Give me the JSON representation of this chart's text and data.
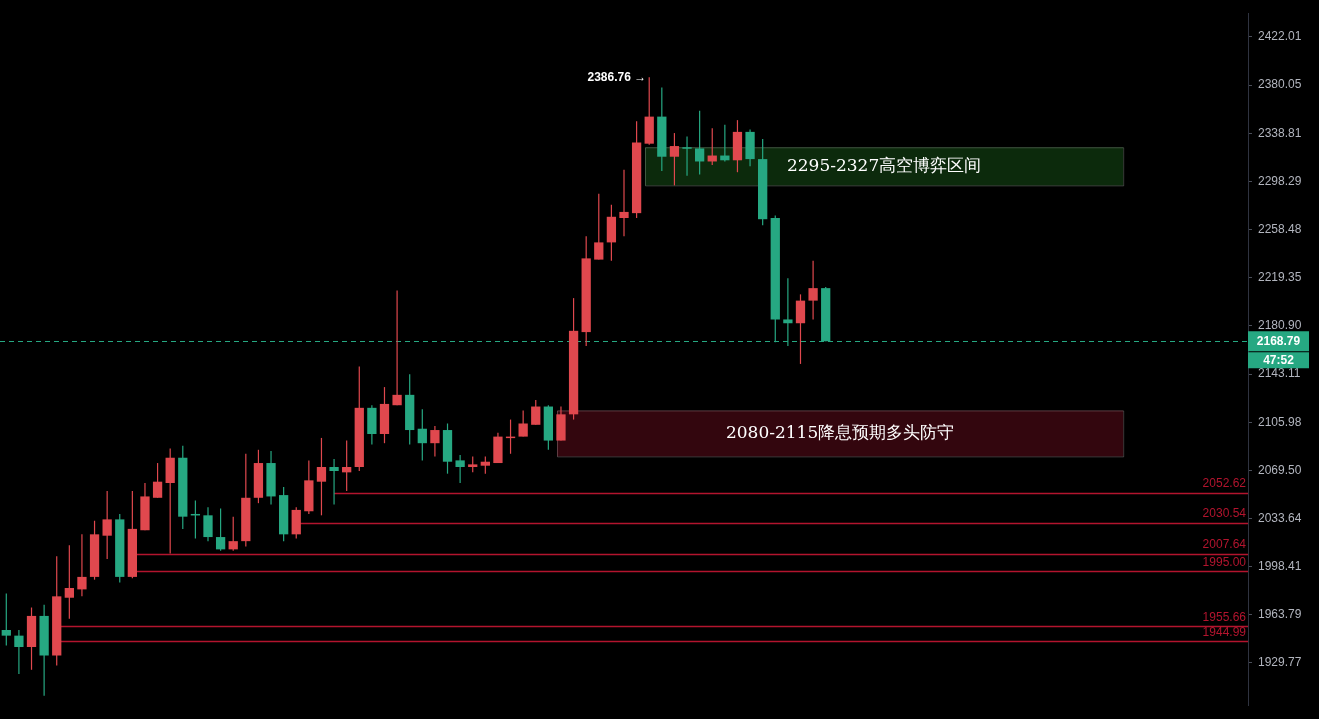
{
  "chart_data": {
    "type": "candlestick",
    "categories": [
      null,
      null,
      null,
      null,
      null,
      null,
      null,
      null,
      null,
      null,
      null,
      null,
      null,
      null,
      null,
      null,
      null,
      null,
      null,
      null,
      null,
      null,
      null,
      null,
      null,
      null,
      null,
      null,
      null,
      null,
      null,
      null,
      null,
      null,
      null,
      null,
      null,
      null,
      null,
      null,
      null,
      null,
      null,
      null,
      null,
      null,
      null,
      null,
      null,
      null,
      null,
      null,
      null,
      null,
      null,
      null,
      null,
      null,
      null,
      null,
      null,
      null,
      null,
      null,
      null,
      null,
      null,
      null,
      null,
      null,
      null,
      null,
      null,
      null,
      null,
      null,
      null,
      null,
      null,
      null,
      null,
      null,
      null,
      null,
      null,
      null,
      null,
      null,
      null,
      null,
      null,
      null,
      null,
      null,
      null,
      null,
      null,
      null,
      null
    ],
    "ohlc": [
      [
        1953,
        1979,
        1942,
        1949
      ],
      [
        1949,
        1953,
        1922,
        1941
      ],
      [
        1941,
        1969,
        1925,
        1963
      ],
      [
        1963,
        1971,
        1907,
        1935
      ],
      [
        1935,
        2006,
        1928,
        1977
      ],
      [
        1976,
        2014,
        1961,
        1983
      ],
      [
        1982,
        2022,
        1977,
        1991
      ],
      [
        1991,
        2032,
        1989,
        2022
      ],
      [
        2021,
        2054,
        2004,
        2033
      ],
      [
        2033,
        2037,
        1987,
        1991
      ],
      [
        1991,
        2054,
        1990,
        2026
      ],
      [
        2025,
        2060,
        2025,
        2050
      ],
      [
        2049,
        2075,
        2049,
        2061
      ],
      [
        2060,
        2086,
        2008,
        2079
      ],
      [
        2079,
        2088,
        2026,
        2035
      ],
      [
        2037,
        2047,
        2019,
        2036
      ],
      [
        2036,
        2042,
        2017,
        2020
      ],
      [
        2020,
        2041,
        2010,
        2011
      ],
      [
        2011,
        2035,
        2010,
        2017
      ],
      [
        2017,
        2082,
        2013,
        2049
      ],
      [
        2049,
        2085,
        2045,
        2075
      ],
      [
        2075,
        2084,
        2044,
        2050
      ],
      [
        2051,
        2057,
        2017,
        2022
      ],
      [
        2022,
        2042,
        2019,
        2040
      ],
      [
        2039,
        2077,
        2037,
        2062
      ],
      [
        2061,
        2094,
        2036,
        2072
      ],
      [
        2072,
        2078,
        2044,
        2069
      ],
      [
        2068,
        2092,
        2054,
        2072
      ],
      [
        2072,
        2149,
        2069,
        2117
      ],
      [
        2117,
        2119,
        2089,
        2097
      ],
      [
        2097,
        2133,
        2090,
        2120
      ],
      [
        2119,
        2209,
        2119,
        2127
      ],
      [
        2127,
        2143,
        2089,
        2100
      ],
      [
        2101,
        2116,
        2077,
        2090
      ],
      [
        2090,
        2103,
        2080,
        2100
      ],
      [
        2100,
        2105,
        2067,
        2076
      ],
      [
        2077,
        2081,
        2060,
        2072
      ],
      [
        2072,
        2080,
        2068,
        2074
      ],
      [
        2073,
        2080,
        2067,
        2076
      ],
      [
        2075,
        2098,
        2075,
        2095
      ],
      [
        2094,
        2108,
        2082,
        2095
      ],
      [
        2095,
        2115,
        2095,
        2105
      ],
      [
        2104,
        2123,
        2104,
        2118
      ],
      [
        2118,
        2119,
        2085,
        2092
      ],
      [
        2092,
        2118,
        2092,
        2112
      ],
      [
        2112,
        2203,
        2108,
        2177
      ],
      [
        2176,
        2253,
        2165,
        2235
      ],
      [
        2234,
        2288,
        2234,
        2248
      ],
      [
        2248,
        2279,
        2233,
        2269
      ],
      [
        2268,
        2308,
        2253,
        2273
      ],
      [
        2272,
        2349,
        2268,
        2331
      ],
      [
        2330,
        2386.76,
        2329,
        2353
      ],
      [
        2353,
        2378,
        2307,
        2319
      ],
      [
        2319,
        2339,
        2295,
        2328
      ],
      [
        2327,
        2336,
        2303,
        2326
      ],
      [
        2326,
        2358,
        2304,
        2315
      ],
      [
        2315,
        2343,
        2312,
        2320
      ],
      [
        2320,
        2346,
        2315,
        2316
      ],
      [
        2316,
        2350,
        2306,
        2340
      ],
      [
        2340,
        2342,
        2311,
        2317
      ],
      [
        2317,
        2334,
        2262,
        2267
      ],
      [
        2268,
        2270,
        2168,
        2186
      ],
      [
        2186,
        2219,
        2165,
        2183
      ],
      [
        2183,
        2206,
        2151,
        2201
      ],
      [
        2201,
        2233,
        2186,
        2211
      ],
      [
        2211,
        2212,
        2168.79,
        2168.79
      ],
      null,
      null,
      null,
      null,
      null,
      null,
      null,
      null,
      null,
      null,
      null,
      null,
      null,
      null,
      null,
      null,
      null,
      null,
      null,
      null,
      null,
      null,
      null,
      null,
      null,
      null,
      null,
      null,
      null,
      null,
      null,
      null,
      null
    ],
    "colors": [
      "#26a882",
      "#26a882",
      "#e0484e",
      "#26a882",
      "#e0484e",
      "#e0484e",
      "#e0484e",
      "#e0484e",
      "#e0484e",
      "#26a882",
      "#e0484e",
      "#e0484e",
      "#e0484e",
      "#e0484e",
      "#26a882",
      "#26a882",
      "#26a882",
      "#26a882",
      "#e0484e",
      "#e0484e",
      "#e0484e",
      "#26a882",
      "#26a882",
      "#e0484e",
      "#e0484e",
      "#e0484e",
      "#26a882",
      "#e0484e",
      "#e0484e",
      "#26a882",
      "#e0484e",
      "#e0484e",
      "#26a882",
      "#26a882",
      "#e0484e",
      "#26a882",
      "#26a882",
      "#e0484e",
      "#e0484e",
      "#e0484e",
      "#e0484e",
      "#e0484e",
      "#e0484e",
      "#26a882",
      "#e0484e",
      "#e0484e",
      "#e0484e",
      "#e0484e",
      "#e0484e",
      "#e0484e",
      "#e0484e",
      "#e0484e",
      "#26a882",
      "#e0484e",
      "#26a882",
      "#26a882",
      "#e0484e",
      "#26a882",
      "#e0484e",
      "#26a882",
      "#26a882",
      "#26a882",
      "#26a882",
      "#e0484e",
      "#e0484e",
      "#26a882",
      null,
      null,
      null,
      null,
      null,
      null,
      null,
      null,
      null,
      null,
      null,
      null,
      null,
      null,
      null,
      null,
      null,
      null,
      null,
      null,
      null,
      null,
      null,
      null,
      null,
      null,
      null,
      null,
      null,
      null,
      null,
      null,
      null
    ],
    "ylim": [
      1900,
      2443
    ],
    "yticks": [
      1929.77,
      1963.79,
      1998.41,
      2033.64,
      {
        "value": 2069.5,
        "label": "2069.50"
      },
      2105.98,
      2143.11,
      {
        "value": 2180.9,
        "label": "2180.90"
      },
      2219.35,
      2258.48,
      2298.29,
      2338.81,
      2380.05,
      2422.01
    ],
    "log": true,
    "tick_labels": "y",
    "grid": false,
    "legend": false,
    "ref_lines": [
      {
        "axis": "y",
        "value": 2052.62,
        "label": "2052.62",
        "color": "#b3142e"
      },
      {
        "axis": "y",
        "value": 2030.54,
        "label": "2030.54",
        "color": "#b3142e"
      },
      {
        "axis": "y",
        "value": 2007.64,
        "label": "2007.64",
        "color": "#b3142e"
      },
      {
        "axis": "y",
        "value": 1995.0,
        "label": "1995.00",
        "color": "#b3142e"
      },
      {
        "axis": "y",
        "value": 1955.66,
        "label": "1955.66",
        "color": "#b3142e"
      },
      {
        "axis": "y",
        "value": 1944.99,
        "label": "1944.99",
        "color": "#b3142e"
      },
      {
        "axis": "y",
        "value": 2168.79,
        "label": "2168.79",
        "color": "#26a882",
        "line_style": "dashed"
      }
    ],
    "bands": [
      {
        "axis": "y",
        "from": 2295,
        "to": 2327,
        "label": "2295-2327高空博弈区间",
        "color": "#0c2a0c"
      },
      {
        "axis": "y",
        "from": 2080,
        "to": 2115,
        "label": "2080-2115降息预期多头防守",
        "color": "#33060e"
      }
    ],
    "annotations": [
      "2386.76 →",
      "47:52"
    ]
  }
}
